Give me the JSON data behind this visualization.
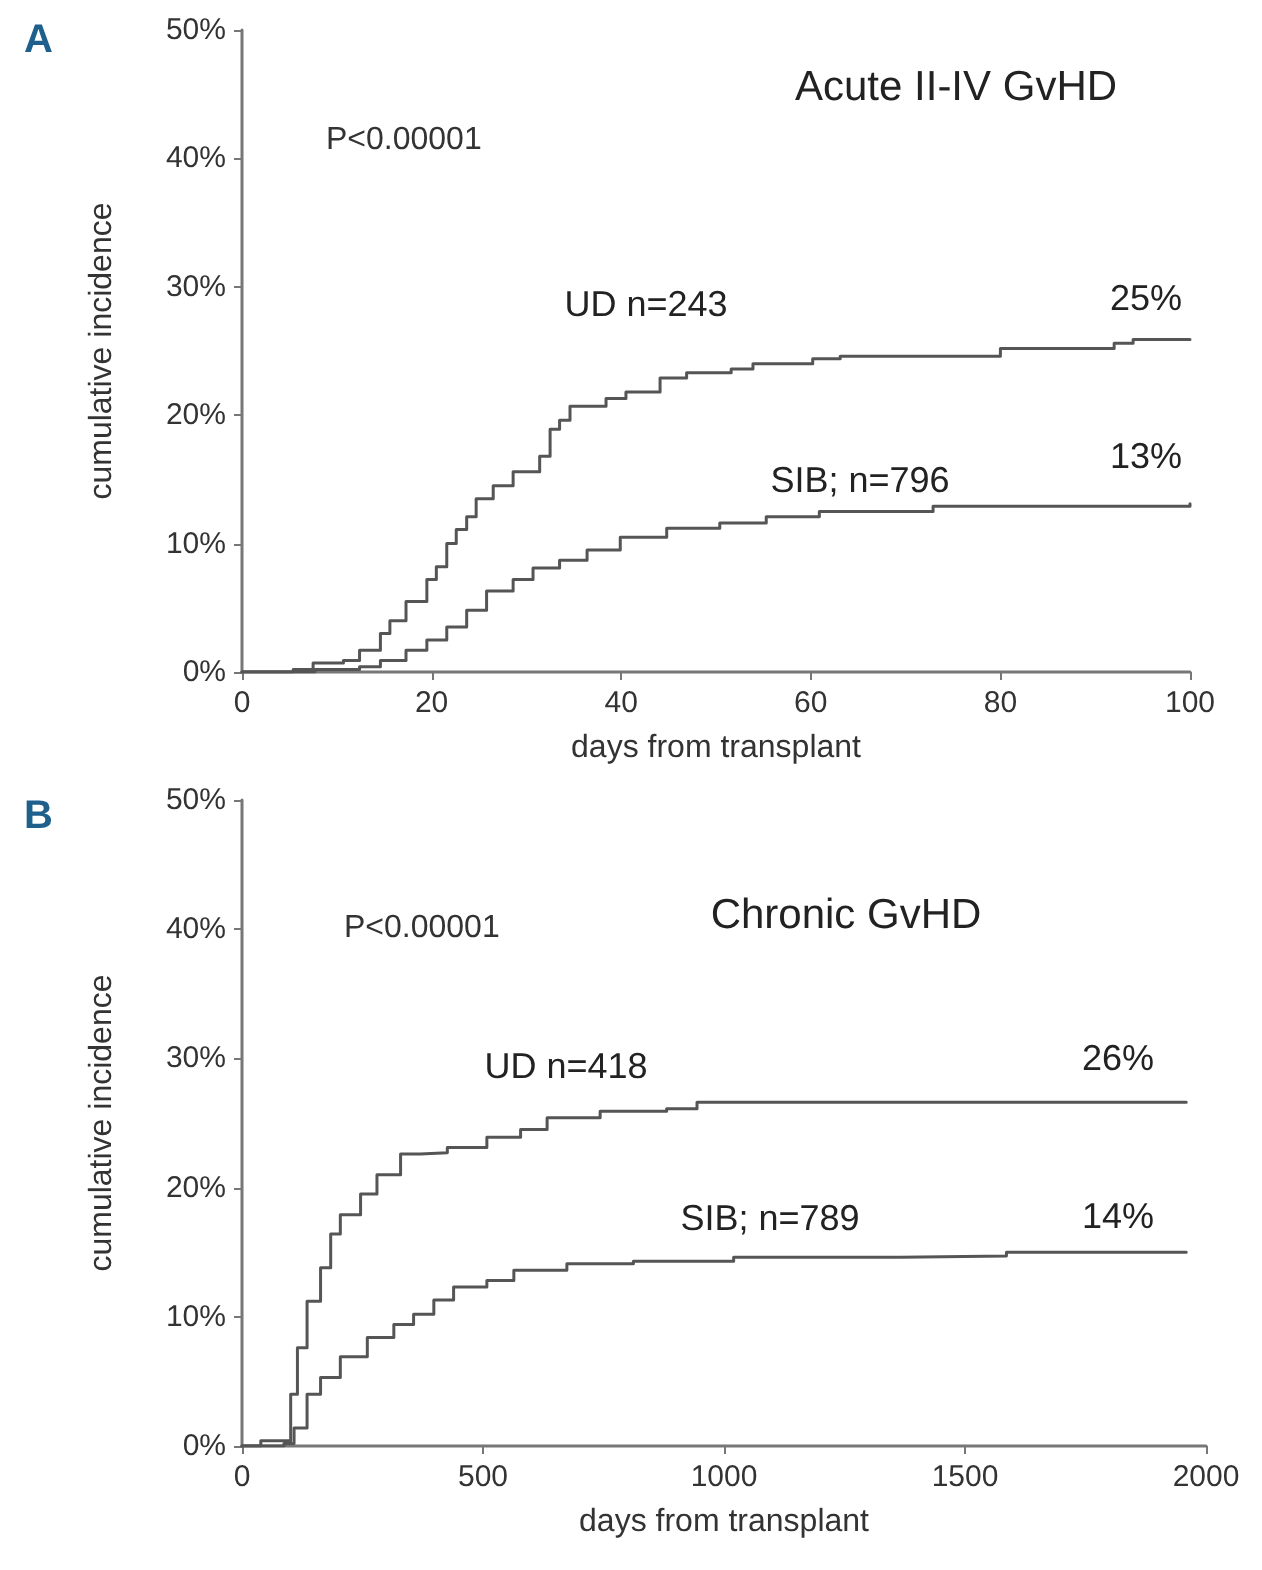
{
  "chart_data": [
    {
      "type": "step",
      "title": "Acute II-IV GvHD",
      "xlabel": "days from transplant",
      "ylabel": "cumulative incidence",
      "xlim": [
        0,
        100
      ],
      "xticks": [
        0,
        20,
        40,
        60,
        80,
        100
      ],
      "ylim": [
        0,
        50
      ],
      "yticks": [
        {
          "value": 0,
          "label": "0%"
        },
        {
          "value": 10,
          "label": "10%"
        },
        {
          "value": 20,
          "label": "20%"
        },
        {
          "value": 30,
          "label": "30%"
        },
        {
          "value": 40,
          "label": "40%"
        },
        {
          "value": 50,
          "label": "50%"
        }
      ],
      "grid": false,
      "marker": "none",
      "line_style": "solid",
      "series": [
        {
          "color": "#555555",
          "x": [
            0,
            5.4,
            7.5,
            10.7,
            12.4,
            14.6,
            15.6,
            17.3,
            19.5,
            20.5,
            21.6,
            22.6,
            23.7,
            24.7,
            26.5,
            28.6,
            31.4,
            32.5,
            33.5,
            34.6,
            38.4,
            40.5,
            44.1,
            46.9,
            51.6,
            53.9,
            60.2,
            63.1,
            78.5,
            80,
            92,
            94,
            100
          ],
          "values": [
            0,
            0.2,
            0.7,
            0.9,
            1.7,
            3.0,
            4.0,
            5.5,
            7.2,
            8.2,
            10.0,
            11.1,
            12.1,
            13.5,
            14.5,
            15.6,
            16.8,
            18.9,
            19.6,
            20.7,
            21.3,
            21.8,
            22.9,
            23.3,
            23.6,
            24.0,
            24.4,
            24.6,
            24.6,
            25.2,
            25.6,
            25.9,
            25.9
          ]
        },
        {
          "color": "#555555",
          "x": [
            0,
            7.7,
            12.4,
            14.6,
            17.3,
            19.5,
            21.6,
            23.7,
            25.8,
            28.6,
            30.7,
            33.5,
            36.4,
            39.9,
            44.8,
            50.4,
            55.3,
            60.9,
            72.9,
            100
          ],
          "values": [
            0,
            0.2,
            0.4,
            0.9,
            1.7,
            2.5,
            3.5,
            4.8,
            6.3,
            7.2,
            8.1,
            8.7,
            9.5,
            10.5,
            11.2,
            11.6,
            12.1,
            12.5,
            12.9,
            13.1
          ]
        }
      ],
      "annotations": [
        "A",
        "P<0.00001",
        "UD n=243",
        "25%",
        "SIB; n=796",
        "13%"
      ]
    },
    {
      "type": "step",
      "title": "Chronic GvHD",
      "xlabel": "days from transplant",
      "ylabel": "cumulative incidence",
      "xlim": [
        0,
        2000
      ],
      "xticks": [
        0,
        500,
        1000,
        1500,
        2000
      ],
      "ylim": [
        0,
        50
      ],
      "yticks": [
        {
          "value": 0,
          "label": "0%"
        },
        {
          "value": 10,
          "label": "10%"
        },
        {
          "value": 20,
          "label": "20%"
        },
        {
          "value": 30,
          "label": "30%"
        },
        {
          "value": 40,
          "label": "40%"
        },
        {
          "value": 50,
          "label": "50%"
        }
      ],
      "grid": false,
      "marker": "none",
      "line_style": "solid",
      "series": [
        {
          "color": "#555555",
          "x": [
            0,
            39,
            94,
            101,
            115,
            135,
            163,
            184,
            204,
            246,
            280,
            329,
            370,
            426,
            508,
            578,
            633,
            743,
            881,
            944,
            1959
          ],
          "values": [
            0,
            0.4,
            0.4,
            4.0,
            7.6,
            11.2,
            13.8,
            16.4,
            17.9,
            19.5,
            21.0,
            22.6,
            22.7,
            23.1,
            23.9,
            24.5,
            25.4,
            25.9,
            26.1,
            26.6,
            26.6
          ]
        },
        {
          "color": "#555555",
          "x": [
            0,
            87,
            108,
            135,
            163,
            204,
            260,
            315,
            356,
            398,
            439,
            508,
            564,
            674,
            812,
            1020,
            1365,
            1586,
            1959
          ],
          "values": [
            0,
            0.2,
            1.4,
            4.0,
            5.3,
            6.9,
            8.4,
            9.4,
            10.2,
            11.3,
            12.3,
            12.8,
            13.6,
            14.1,
            14.3,
            14.6,
            14.7,
            15.0,
            15.0
          ]
        }
      ],
      "annotations": [
        "B",
        "P<0.00001",
        "UD n=418",
        "26%",
        "SIB; n=789",
        "14%"
      ]
    }
  ]
}
